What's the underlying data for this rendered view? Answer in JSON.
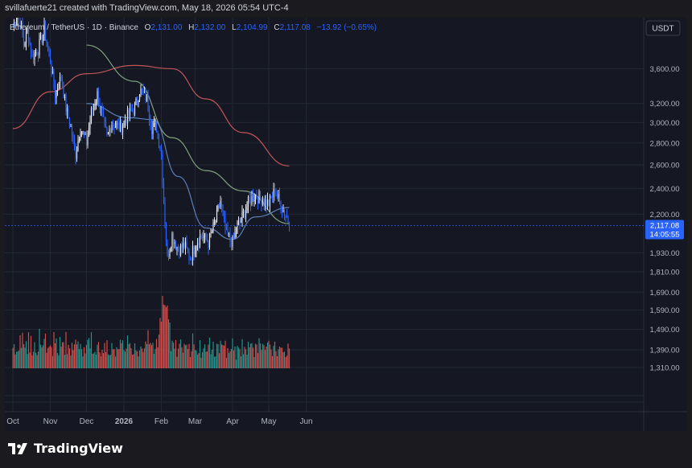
{
  "header": {
    "text": "svillafuerte21 created with TradingView.com, May 18, 2026 05:54 UTC-4"
  },
  "legend": {
    "symbol": "Ethereum / TetherUS · 1D · Binance",
    "o_label": "O",
    "o_value": "2,131.00",
    "h_label": "H",
    "h_value": "2,132.00",
    "l_label": "L",
    "l_value": "2,104.99",
    "c_label": "C",
    "c_value": "2,117.08",
    "change": "−13.92 (−0.65%)"
  },
  "footer": {
    "brand": "TradingView"
  },
  "colors": {
    "up": "#e6e8ee",
    "down": "#2962ff",
    "vol_up": "#26a69a",
    "vol_down": "#ef5350",
    "ma_slow": "#c2555a",
    "ma_mid": "#7fa27d",
    "ma_fast": "#5b7fb8",
    "price_tag": "#2962ff"
  },
  "chart_data": {
    "type": "candlestick",
    "currency": "USDT",
    "y_ticks": [
      "3,600.00",
      "3,200.00",
      "3,000.00",
      "2,800.00",
      "2,600.00",
      "2,400.00",
      "2,200.00",
      "1,930.00",
      "1,810.00",
      "1,690.00",
      "1,590.00",
      "1,490.00",
      "1,390.00",
      "1,310.00"
    ],
    "y_scale": "log",
    "ylim": [
      1230,
      4030
    ],
    "x_labels": [
      "Oct",
      "Nov",
      "Dec",
      "2026",
      "Feb",
      "Mar",
      "Apr",
      "May",
      "Jun"
    ],
    "last_price": "2,117.08",
    "countdown": "14:05:55",
    "anchors": [
      [
        "2025-10-01",
        4150
      ],
      [
        "2025-10-06",
        4400
      ],
      [
        "2025-10-10",
        3900
      ],
      [
        "2025-10-13",
        4100
      ],
      [
        "2025-10-17",
        3750
      ],
      [
        "2025-10-22",
        3850
      ],
      [
        "2025-10-27",
        4100
      ],
      [
        "2025-11-01",
        3700
      ],
      [
        "2025-11-05",
        3300
      ],
      [
        "2025-11-10",
        3500
      ],
      [
        "2025-11-14",
        3150
      ],
      [
        "2025-11-18",
        2950
      ],
      [
        "2025-11-22",
        2700
      ],
      [
        "2025-11-26",
        2950
      ],
      [
        "2025-12-01",
        2800
      ],
      [
        "2025-12-05",
        3100
      ],
      [
        "2025-12-10",
        3300
      ],
      [
        "2025-12-15",
        3000
      ],
      [
        "2025-12-18",
        2850
      ],
      [
        "2025-12-22",
        3000
      ],
      [
        "2025-12-29",
        2950
      ],
      [
        "2026-01-03",
        3050
      ],
      [
        "2026-01-10",
        3150
      ],
      [
        "2026-01-14",
        3350
      ],
      [
        "2026-01-20",
        3250
      ],
      [
        "2026-01-24",
        2950
      ],
      [
        "2026-01-28",
        2950
      ],
      [
        "2026-02-01",
        2700
      ],
      [
        "2026-02-03",
        2300
      ],
      [
        "2026-02-06",
        1900
      ],
      [
        "2026-02-10",
        2050
      ],
      [
        "2026-02-15",
        1950
      ],
      [
        "2026-02-20",
        1980
      ],
      [
        "2026-02-25",
        1900
      ],
      [
        "2026-03-02",
        2000
      ],
      [
        "2026-03-06",
        2050
      ],
      [
        "2026-03-12",
        2000
      ],
      [
        "2026-03-18",
        2150
      ],
      [
        "2026-03-22",
        2300
      ],
      [
        "2026-03-27",
        2050
      ],
      [
        "2026-04-01",
        2000
      ],
      [
        "2026-04-05",
        2100
      ],
      [
        "2026-04-10",
        2200
      ],
      [
        "2026-04-15",
        2300
      ],
      [
        "2026-04-20",
        2350
      ],
      [
        "2026-04-25",
        2320
      ],
      [
        "2026-05-01",
        2280
      ],
      [
        "2026-05-06",
        2380
      ],
      [
        "2026-05-12",
        2250
      ],
      [
        "2026-05-16",
        2180
      ],
      [
        "2026-05-18",
        2117
      ]
    ],
    "ma_slow": [
      [
        "2025-10-01",
        2940
      ],
      [
        "2025-11-01",
        3330
      ],
      [
        "2025-12-01",
        3540
      ],
      [
        "2026-01-10",
        3640
      ],
      [
        "2026-02-10",
        3600
      ],
      [
        "2026-03-10",
        3250
      ],
      [
        "2026-04-10",
        2900
      ],
      [
        "2026-05-18",
        2590
      ]
    ],
    "ma_mid": [
      [
        "2025-12-01",
        3900
      ],
      [
        "2026-01-10",
        3450
      ],
      [
        "2026-02-10",
        2850
      ],
      [
        "2026-03-10",
        2550
      ],
      [
        "2026-04-10",
        2380
      ],
      [
        "2026-05-18",
        2130
      ]
    ],
    "ma_fast": [
      [
        "2025-12-01",
        3200
      ],
      [
        "2026-01-05",
        3050
      ],
      [
        "2026-01-25",
        3030
      ],
      [
        "2026-02-15",
        2500
      ],
      [
        "2026-03-10",
        2100
      ],
      [
        "2026-04-01",
        2020
      ],
      [
        "2026-04-20",
        2180
      ],
      [
        "2026-05-18",
        2250
      ]
    ]
  }
}
